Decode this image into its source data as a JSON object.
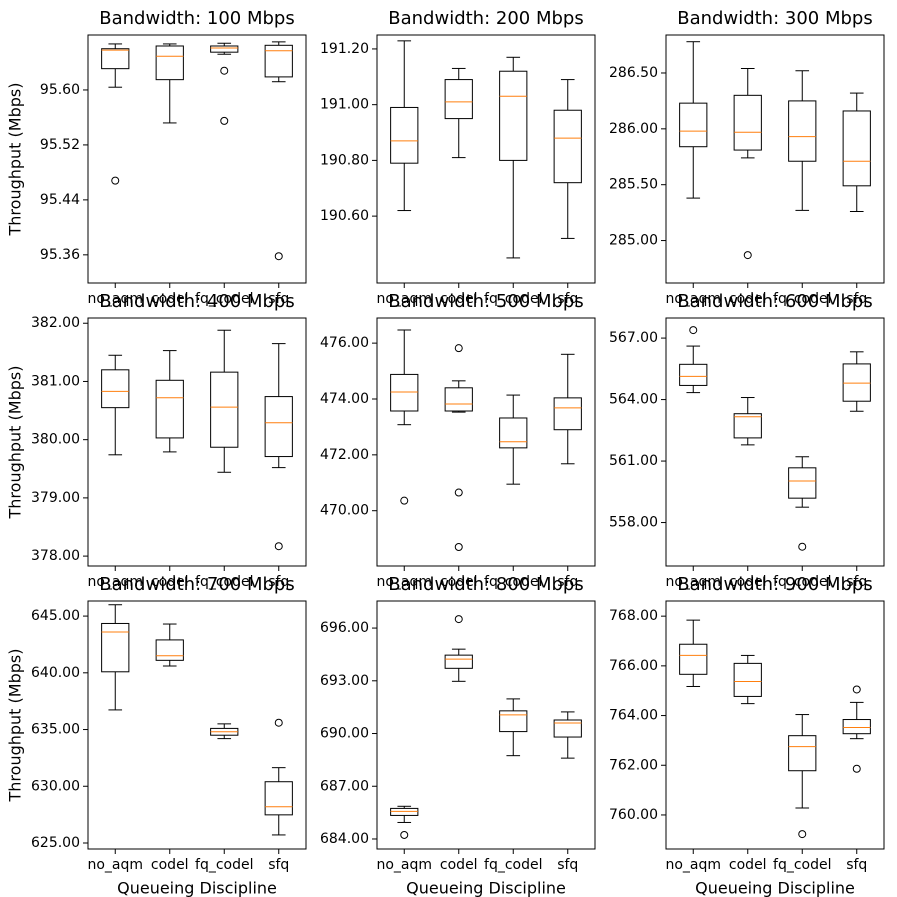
{
  "chart_data": [
    {
      "type": "box",
      "title": "Bandwidth: 100 Mbps",
      "ylabel": "Throughput (Mbps)",
      "categories": [
        "no_aqm",
        "codel",
        "fq_codel",
        "sfq"
      ],
      "color": "#000000",
      "median_color": "#ff7f0e",
      "ylim": [
        95.319,
        95.68
      ],
      "yticks": [
        {
          "value": 95.6,
          "label": "95.60"
        },
        95.52,
        95.44,
        95.36
      ],
      "boxes": [
        {
          "whislo": 95.604,
          "q1": 95.631,
          "med": 95.658,
          "q3": 95.66,
          "whishi": 95.667,
          "fliers": [
            95.468
          ]
        },
        {
          "whislo": 95.552,
          "q1": 95.615,
          "med": 95.649,
          "q3": 95.664,
          "whishi": 95.667,
          "fliers": []
        },
        {
          "whislo": 95.652,
          "q1": 95.655,
          "med": 95.661,
          "q3": 95.664,
          "whishi": 95.668,
          "fliers": [
            95.628,
            95.555
          ]
        },
        {
          "whislo": 95.612,
          "q1": 95.619,
          "med": 95.657,
          "q3": 95.665,
          "whishi": 95.67,
          "fliers": [
            95.358
          ]
        }
      ]
    },
    {
      "type": "box",
      "title": "Bandwidth: 200 Mbps",
      "categories": [
        "no_aqm",
        "codel",
        "fq_codel",
        "sfq"
      ],
      "color": "#000000",
      "median_color": "#ff7f0e",
      "ylim": [
        190.36,
        191.25
      ],
      "yticks": [
        {
          "value": 191.2,
          "label": "191.20"
        },
        {
          "value": 191.0,
          "label": "191.00"
        },
        {
          "value": 190.8,
          "label": "190.80"
        },
        {
          "value": 190.6,
          "label": "190.60"
        }
      ],
      "boxes": [
        {
          "whislo": 190.62,
          "q1": 190.79,
          "med": 190.87,
          "q3": 190.99,
          "whishi": 191.229,
          "fliers": []
        },
        {
          "whislo": 190.81,
          "q1": 190.95,
          "med": 191.01,
          "q3": 191.09,
          "whishi": 191.13,
          "fliers": []
        },
        {
          "whislo": 190.45,
          "q1": 190.8,
          "med": 191.03,
          "q3": 191.12,
          "whishi": 191.17,
          "fliers": []
        },
        {
          "whislo": 190.52,
          "q1": 190.72,
          "med": 190.88,
          "q3": 190.98,
          "whishi": 191.09,
          "fliers": []
        }
      ]
    },
    {
      "type": "box",
      "title": "Bandwidth: 300 Mbps",
      "categories": [
        "no_aqm",
        "codel",
        "fq_codel",
        "sfq"
      ],
      "color": "#000000",
      "median_color": "#ff7f0e",
      "ylim": [
        284.62,
        286.84
      ],
      "yticks": [
        {
          "value": 286.5,
          "label": "286.50"
        },
        {
          "value": 286.0,
          "label": "286.00"
        },
        {
          "value": 285.5,
          "label": "285.50"
        },
        {
          "value": 285.0,
          "label": "285.00"
        }
      ],
      "boxes": [
        {
          "whislo": 285.38,
          "q1": 285.84,
          "med": 285.98,
          "q3": 286.23,
          "whishi": 286.78,
          "fliers": []
        },
        {
          "whislo": 285.74,
          "q1": 285.81,
          "med": 285.97,
          "q3": 286.3,
          "whishi": 286.54,
          "fliers": [
            284.87
          ]
        },
        {
          "whislo": 285.27,
          "q1": 285.71,
          "med": 285.93,
          "q3": 286.25,
          "whishi": 286.52,
          "fliers": []
        },
        {
          "whislo": 285.26,
          "q1": 285.49,
          "med": 285.71,
          "q3": 286.16,
          "whishi": 286.32,
          "fliers": []
        }
      ]
    },
    {
      "type": "box",
      "title": "Bandwidth: 400 Mbps",
      "ylabel": "Throughput (Mbps)",
      "categories": [
        "no_aqm",
        "codel",
        "fq_codel",
        "sfq"
      ],
      "color": "#000000",
      "median_color": "#ff7f0e",
      "ylim": [
        377.83,
        382.09
      ],
      "yticks": [
        {
          "value": 382.0,
          "label": "382.00"
        },
        {
          "value": 381.0,
          "label": "381.00"
        },
        {
          "value": 380.0,
          "label": "380.00"
        },
        {
          "value": 379.0,
          "label": "379.00"
        },
        {
          "value": 378.0,
          "label": "378.00"
        }
      ],
      "boxes": [
        {
          "whislo": 379.74,
          "q1": 380.55,
          "med": 380.83,
          "q3": 381.2,
          "whishi": 381.45,
          "fliers": []
        },
        {
          "whislo": 379.79,
          "q1": 380.03,
          "med": 380.72,
          "q3": 381.02,
          "whishi": 381.53,
          "fliers": []
        },
        {
          "whislo": 379.44,
          "q1": 379.87,
          "med": 380.56,
          "q3": 381.16,
          "whishi": 381.88,
          "fliers": []
        },
        {
          "whislo": 379.52,
          "q1": 379.71,
          "med": 380.29,
          "q3": 380.74,
          "whishi": 381.65,
          "fliers": [
            378.17
          ]
        }
      ]
    },
    {
      "type": "box",
      "title": "Bandwidth: 500 Mbps",
      "categories": [
        "no_aqm",
        "codel",
        "fq_codel",
        "sfq"
      ],
      "color": "#000000",
      "median_color": "#ff7f0e",
      "ylim": [
        468.02,
        476.9
      ],
      "yticks": [
        {
          "value": 476.0,
          "label": "476.00"
        },
        {
          "value": 474.0,
          "label": "474.00"
        },
        {
          "value": 472.0,
          "label": "472.00"
        },
        {
          "value": 470.0,
          "label": "470.00"
        }
      ],
      "boxes": [
        {
          "whislo": 473.08,
          "q1": 473.57,
          "med": 474.25,
          "q3": 474.88,
          "whishi": 476.47,
          "fliers": [
            470.36
          ]
        },
        {
          "whislo": 473.53,
          "q1": 473.57,
          "med": 473.82,
          "q3": 474.4,
          "whishi": 474.65,
          "fliers": [
            475.82,
            470.65,
            468.7
          ]
        },
        {
          "whislo": 470.95,
          "q1": 472.25,
          "med": 472.47,
          "q3": 473.32,
          "whishi": 474.14,
          "fliers": []
        },
        {
          "whislo": 471.68,
          "q1": 472.9,
          "med": 473.68,
          "q3": 474.04,
          "whishi": 475.6,
          "fliers": []
        }
      ]
    },
    {
      "type": "box",
      "title": "Bandwidth: 600 Mbps",
      "categories": [
        "no_aqm",
        "codel",
        "fq_codel",
        "sfq"
      ],
      "color": "#000000",
      "median_color": "#ff7f0e",
      "ylim": [
        555.88,
        567.98
      ],
      "yticks": [
        {
          "value": 567.0,
          "label": "567.00"
        },
        {
          "value": 564.0,
          "label": "564.00"
        },
        {
          "value": 561.0,
          "label": "561.00"
        },
        {
          "value": 558.0,
          "label": "558.00"
        }
      ],
      "boxes": [
        {
          "whislo": 564.34,
          "q1": 564.69,
          "med": 565.13,
          "q3": 565.72,
          "whishi": 566.61,
          "fliers": [
            567.39
          ]
        },
        {
          "whislo": 561.79,
          "q1": 562.13,
          "med": 563.16,
          "q3": 563.31,
          "whishi": 564.1,
          "fliers": []
        },
        {
          "whislo": 558.75,
          "q1": 559.19,
          "med": 560.03,
          "q3": 560.67,
          "whishi": 561.21,
          "fliers": [
            556.82
          ]
        },
        {
          "whislo": 563.43,
          "q1": 563.92,
          "med": 564.8,
          "q3": 565.74,
          "whishi": 566.33,
          "fliers": []
        }
      ]
    },
    {
      "type": "box",
      "title": "Bandwidth: 700 Mbps",
      "ylabel": "Throughput (Mbps)",
      "xlabel": "Queueing Discipline",
      "categories": [
        "no_aqm",
        "codel",
        "fq_codel",
        "sfq"
      ],
      "color": "#000000",
      "median_color": "#ff7f0e",
      "ylim": [
        624.47,
        646.33
      ],
      "yticks": [
        {
          "value": 645.0,
          "label": "645.00"
        },
        {
          "value": 640.0,
          "label": "640.00"
        },
        {
          "value": 635.0,
          "label": "635.00"
        },
        {
          "value": 630.0,
          "label": "630.00"
        },
        {
          "value": 625.0,
          "label": "625.00"
        }
      ],
      "boxes": [
        {
          "whislo": 636.73,
          "q1": 640.09,
          "med": 643.6,
          "q3": 644.35,
          "whishi": 646.0,
          "fliers": []
        },
        {
          "whislo": 640.6,
          "q1": 641.1,
          "med": 641.5,
          "q3": 642.9,
          "whishi": 644.3,
          "fliers": []
        },
        {
          "whislo": 634.2,
          "q1": 634.5,
          "med": 634.8,
          "q3": 635.1,
          "whishi": 635.5,
          "fliers": []
        },
        {
          "whislo": 625.71,
          "q1": 627.48,
          "med": 628.19,
          "q3": 630.4,
          "whishi": 631.64,
          "fliers": [
            635.6
          ]
        }
      ]
    },
    {
      "type": "box",
      "title": "Bandwidth: 800 Mbps",
      "xlabel": "Queueing Discipline",
      "categories": [
        "no_aqm",
        "codel",
        "fq_codel",
        "sfq"
      ],
      "color": "#000000",
      "median_color": "#ff7f0e",
      "ylim": [
        683.43,
        697.54
      ],
      "yticks": [
        {
          "value": 696.0,
          "label": "696.00"
        },
        {
          "value": 693.0,
          "label": "693.00"
        },
        {
          "value": 690.0,
          "label": "690.00"
        },
        {
          "value": 687.0,
          "label": "687.00"
        },
        {
          "value": 684.0,
          "label": "684.00"
        }
      ],
      "boxes": [
        {
          "whislo": 684.94,
          "q1": 685.34,
          "med": 685.57,
          "q3": 685.74,
          "whishi": 685.86,
          "fliers": [
            684.23
          ]
        },
        {
          "whislo": 692.97,
          "q1": 693.71,
          "med": 694.23,
          "q3": 694.46,
          "whishi": 694.8,
          "fliers": [
            696.51
          ]
        },
        {
          "whislo": 688.74,
          "q1": 690.11,
          "med": 691.06,
          "q3": 691.29,
          "whishi": 691.97,
          "fliers": []
        },
        {
          "whislo": 688.6,
          "q1": 689.8,
          "med": 690.6,
          "q3": 690.77,
          "whishi": 691.23,
          "fliers": []
        }
      ]
    },
    {
      "type": "box",
      "title": "Bandwidth: 900 Mbps",
      "xlabel": "Queueing Discipline",
      "categories": [
        "no_aqm",
        "codel",
        "fq_codel",
        "sfq"
      ],
      "color": "#000000",
      "median_color": "#ff7f0e",
      "ylim": [
        758.63,
        768.61
      ],
      "yticks": [
        {
          "value": 768.0,
          "label": "768.00"
        },
        {
          "value": 766.0,
          "label": "766.00"
        },
        {
          "value": 764.0,
          "label": "764.00"
        },
        {
          "value": 762.0,
          "label": "762.00"
        },
        {
          "value": 760.0,
          "label": "760.00"
        }
      ],
      "boxes": [
        {
          "whislo": 765.17,
          "q1": 765.66,
          "med": 766.42,
          "q3": 766.87,
          "whishi": 767.84,
          "fliers": []
        },
        {
          "whislo": 764.48,
          "q1": 764.77,
          "med": 765.37,
          "q3": 766.1,
          "whishi": 766.42,
          "fliers": []
        },
        {
          "whislo": 760.28,
          "q1": 761.78,
          "med": 762.75,
          "q3": 763.19,
          "whishi": 764.04,
          "fliers": [
            759.23
          ]
        },
        {
          "whislo": 763.07,
          "q1": 763.27,
          "med": 763.52,
          "q3": 763.84,
          "whishi": 764.53,
          "fliers": [
            765.05,
            761.86
          ]
        }
      ]
    }
  ]
}
